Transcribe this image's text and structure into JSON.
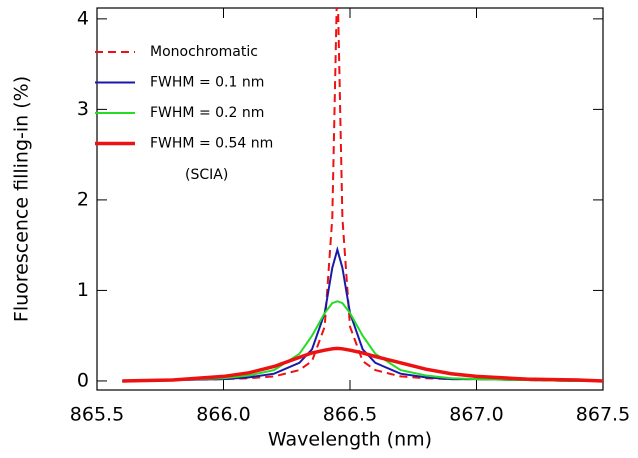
{
  "chart_data": {
    "type": "line",
    "x_label": "Wavelength (nm)",
    "y_label": "Fluorescence filling-in (%)",
    "x": [
      865.6,
      865.8,
      866.0,
      866.1,
      866.2,
      866.3,
      866.35,
      866.4,
      866.43,
      866.45,
      866.47,
      866.5,
      866.55,
      866.6,
      866.7,
      866.8,
      866.9,
      867.0,
      867.2,
      867.4,
      867.5
    ],
    "series": [
      {
        "name": "Monochromatic",
        "color": "#ee1111",
        "dashed": true,
        "line_width": 2,
        "values": [
          0.0,
          0.01,
          0.02,
          0.03,
          0.05,
          0.12,
          0.22,
          0.6,
          1.8,
          4.5,
          1.8,
          0.6,
          0.22,
          0.12,
          0.05,
          0.03,
          0.02,
          0.02,
          0.01,
          0.0,
          0.0
        ]
      },
      {
        "name": "FWHM = 0.1 nm",
        "color": "#1a1aaa",
        "dashed": false,
        "line_width": 2,
        "values": [
          0.0,
          0.01,
          0.02,
          0.04,
          0.08,
          0.2,
          0.35,
          0.75,
          1.25,
          1.45,
          1.25,
          0.75,
          0.35,
          0.2,
          0.08,
          0.04,
          0.02,
          0.02,
          0.01,
          0.0,
          0.0
        ]
      },
      {
        "name": "FWHM = 0.2 nm",
        "color": "#22dd22",
        "dashed": false,
        "line_width": 2,
        "values": [
          0.0,
          0.01,
          0.03,
          0.06,
          0.12,
          0.3,
          0.5,
          0.75,
          0.86,
          0.88,
          0.86,
          0.75,
          0.5,
          0.3,
          0.12,
          0.06,
          0.03,
          0.02,
          0.01,
          0.0,
          0.0
        ]
      },
      {
        "name": "FWHM = 0.54 nm",
        "color": "#ee1111",
        "dashed": false,
        "line_width": 3.5,
        "values": [
          0.0,
          0.01,
          0.05,
          0.09,
          0.16,
          0.26,
          0.31,
          0.34,
          0.355,
          0.36,
          0.355,
          0.34,
          0.31,
          0.27,
          0.2,
          0.13,
          0.08,
          0.05,
          0.02,
          0.01,
          0.0
        ]
      }
    ],
    "annotation": "(SCIA)",
    "xlim": [
      865.5,
      867.5
    ],
    "xticks": [
      865.5,
      {
        "value": 866,
        "label": "866.0"
      },
      866.5,
      {
        "value": 867,
        "label": "867.0"
      },
      867.5
    ],
    "ylim": [
      -0.1,
      4.12
    ],
    "yticks": [
      0,
      1,
      2,
      3,
      4
    ]
  }
}
